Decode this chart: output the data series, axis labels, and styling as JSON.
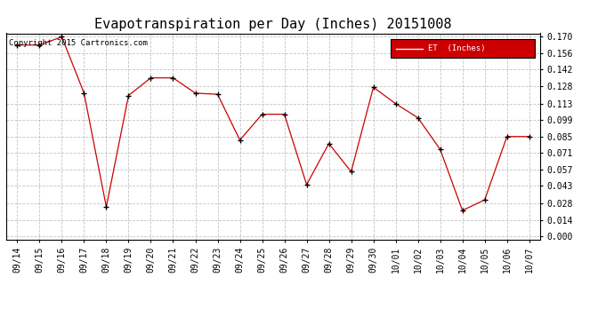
{
  "title": "Evapotranspiration per Day (Inches) 20151008",
  "copyright": "Copyright 2015 Cartronics.com",
  "legend_label": "ET  (Inches)",
  "legend_bg": "#cc0000",
  "legend_text_color": "#ffffff",
  "x_labels": [
    "09/14",
    "09/15",
    "09/16",
    "09/17",
    "09/18",
    "09/19",
    "09/20",
    "09/21",
    "09/22",
    "09/23",
    "09/24",
    "09/25",
    "09/26",
    "09/27",
    "09/28",
    "09/29",
    "09/30",
    "10/01",
    "10/02",
    "10/03",
    "10/04",
    "10/05",
    "10/06",
    "10/07"
  ],
  "y_values": [
    0.163,
    0.163,
    0.17,
    0.122,
    0.025,
    0.12,
    0.135,
    0.135,
    0.122,
    0.121,
    0.082,
    0.104,
    0.104,
    0.044,
    0.079,
    0.055,
    0.127,
    0.113,
    0.101,
    0.074,
    0.022,
    0.031,
    0.085,
    0.085
  ],
  "y_ticks": [
    0.0,
    0.014,
    0.028,
    0.043,
    0.057,
    0.071,
    0.085,
    0.099,
    0.113,
    0.128,
    0.142,
    0.156,
    0.17
  ],
  "line_color": "#cc0000",
  "marker_color": "#000000",
  "grid_color": "#aaaaaa",
  "bg_color": "#ffffff",
  "ylim": [
    0.0,
    0.17
  ],
  "title_fontsize": 11,
  "tick_fontsize": 7,
  "copyright_fontsize": 6.5
}
